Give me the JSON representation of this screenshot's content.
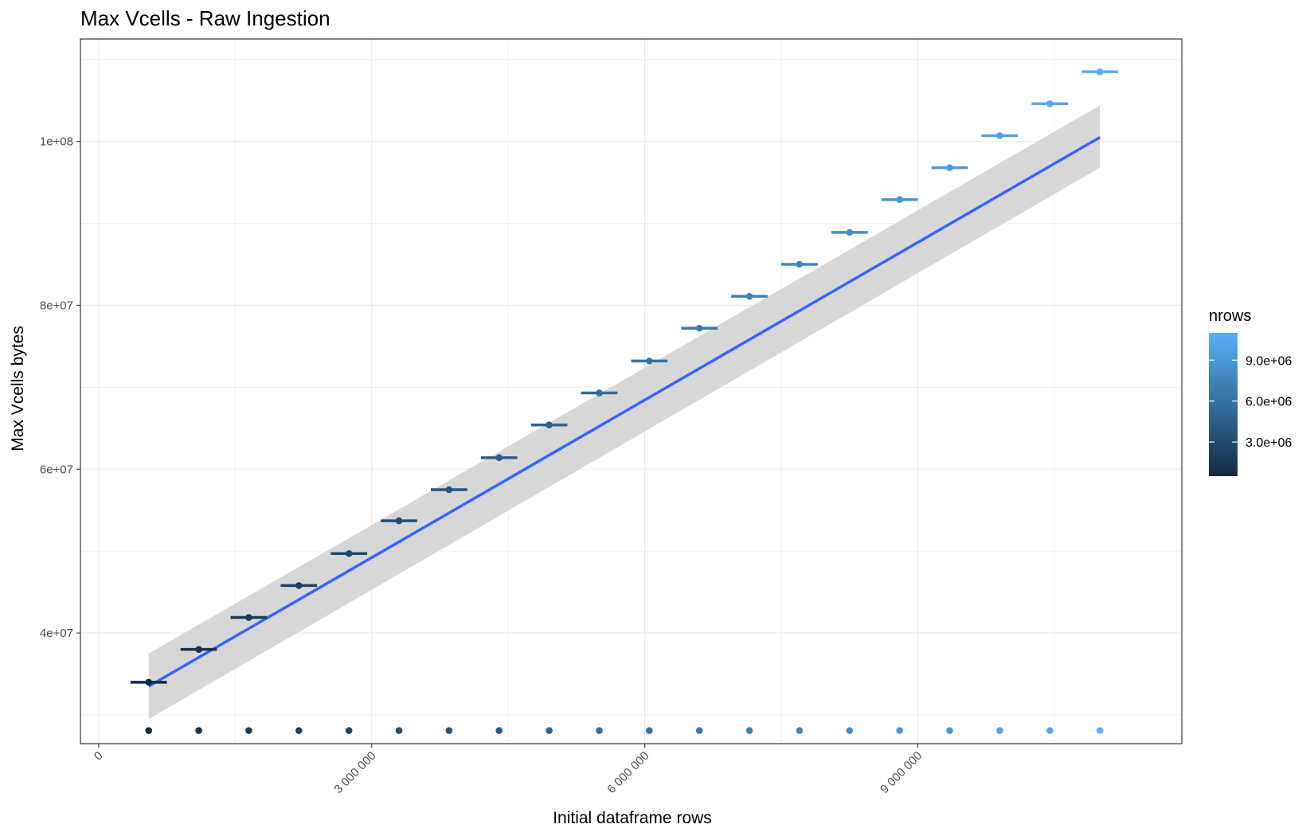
{
  "chart_data": {
    "type": "scatter",
    "title": "Max Vcells - Raw Ingestion",
    "xlabel": "Initial dataframe rows",
    "ylabel": "Max Vcells bytes",
    "xlim": [
      -200000,
      11900000
    ],
    "ylim": [
      26500000,
      112500000
    ],
    "x_ticks": [
      0,
      3000000,
      6000000,
      9000000
    ],
    "x_tick_labels": [
      "0",
      "3 000 000",
      "6 000 000",
      "9 000 000"
    ],
    "y_ticks": [
      40000000,
      60000000,
      80000000,
      100000000
    ],
    "y_tick_labels": [
      "4e+07",
      "6e+07",
      "8e+07",
      "1e+08"
    ],
    "grid": true,
    "legend": {
      "title": "nrows",
      "type": "colorbar",
      "placement": "right",
      "range": [
        500000,
        11000000
      ],
      "ticks": [
        3000000,
        6000000,
        9000000
      ],
      "tick_labels": [
        "3.0e+06",
        "6.0e+06",
        "9.0e+06"
      ],
      "color_low": "#132b43",
      "color_high": "#56b1f7"
    },
    "series": [
      {
        "kind": "points_with_errorbars",
        "x": [
          550000,
          1100000,
          1650000,
          2200000,
          2750000,
          3300000,
          3850000,
          4400000,
          4950000,
          5500000,
          6050000,
          6600000,
          7150000,
          7700000,
          8250000,
          8800000,
          9350000,
          9900000,
          10450000,
          11000000
        ],
        "y": [
          34000000,
          38000000,
          41900000,
          45800000,
          49700000,
          53700000,
          57500000,
          61400000,
          65400000,
          69300000,
          73200000,
          77200000,
          81100000,
          85000000,
          88900000,
          92900000,
          96800000,
          100700000,
          104600000,
          108500000
        ],
        "xerr": [
          200000,
          200000,
          200000,
          200000,
          200000,
          200000,
          200000,
          200000,
          200000,
          200000,
          200000,
          200000,
          200000,
          200000,
          200000,
          200000,
          200000,
          200000,
          200000,
          200000
        ],
        "color_by": "nrows"
      },
      {
        "kind": "points",
        "x": [
          550000,
          1100000,
          1650000,
          2200000,
          2750000,
          3300000,
          3850000,
          4400000,
          4950000,
          5500000,
          6050000,
          6600000,
          7150000,
          7700000,
          8250000,
          8800000,
          9350000,
          9900000,
          10450000,
          11000000
        ],
        "y": [
          28100000,
          28100000,
          28100000,
          28100000,
          28100000,
          28100000,
          28100000,
          28100000,
          28100000,
          28100000,
          28100000,
          28100000,
          28100000,
          28100000,
          28100000,
          28100000,
          28100000,
          28100000,
          28100000,
          28100000
        ],
        "color_by": "nrows"
      },
      {
        "kind": "smooth_lm",
        "x": [
          550000,
          11000000
        ],
        "y": [
          33500000,
          100500000
        ],
        "ribbon_lower": [
          29500000,
          96800000
        ],
        "ribbon_upper": [
          37500000,
          104400000
        ],
        "line_color": "#3366ff",
        "ribbon_color": "#d3d3d3"
      }
    ]
  }
}
